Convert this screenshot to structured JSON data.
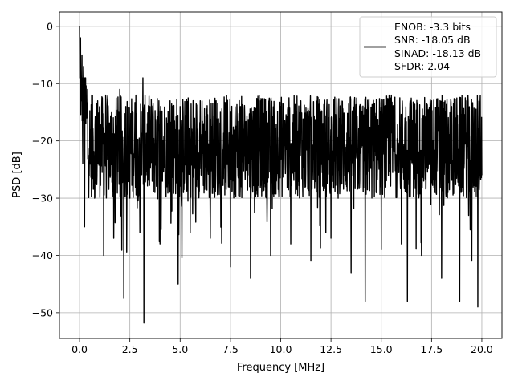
{
  "chart_data": {
    "type": "line",
    "title": "",
    "xlabel": "Frequency [MHz]",
    "ylabel": "PSD [dB]",
    "xlim": [
      -1.0,
      21.0
    ],
    "ylim": [
      -54.5,
      2.5
    ],
    "xticks": [
      0.0,
      2.5,
      5.0,
      7.5,
      10.0,
      12.5,
      15.0,
      17.5,
      20.0
    ],
    "xtick_labels": [
      "0.0",
      "2.5",
      "5.0",
      "7.5",
      "10.0",
      "12.5",
      "15.0",
      "17.5",
      "20.0"
    ],
    "yticks": [
      0,
      -10,
      -20,
      -30,
      -40,
      -50
    ],
    "ytick_labels": [
      "0",
      "−10",
      "−20",
      "−30",
      "−40",
      "−50"
    ],
    "grid": true,
    "legend": {
      "placement": "top-right",
      "entries": [
        "ENOB: -3.3 bits",
        "SNR: -18.05 dB",
        "SINAD: -18.13 dB",
        "SFDR: 2.04"
      ]
    },
    "series": [
      {
        "color": "#000000",
        "x": [
          0.0,
          0.02,
          0.05,
          0.08,
          0.12,
          0.16,
          0.2,
          0.25,
          0.3,
          0.35,
          0.4,
          0.5,
          0.6,
          0.75,
          0.9,
          1.0,
          1.2,
          1.3,
          1.5,
          1.7,
          2.0,
          2.2,
          2.3,
          2.5,
          2.8,
          3.0,
          3.15,
          3.2,
          3.5,
          4.0,
          4.5,
          4.9,
          5.0,
          5.5,
          6.0,
          6.5,
          7.0,
          7.5,
          8.0,
          8.5,
          9.0,
          9.5,
          10.0,
          10.5,
          11.0,
          11.5,
          12.0,
          12.5,
          13.0,
          13.5,
          14.0,
          14.2,
          14.5,
          15.0,
          15.5,
          16.0,
          16.3,
          16.5,
          17.0,
          17.5,
          18.0,
          18.5,
          18.9,
          19.2,
          19.5,
          19.8,
          20.0
        ],
        "y": [
          0.0,
          -8.0,
          -2.0,
          -13.0,
          -5.0,
          -24.0,
          -7.0,
          -35.0,
          -9.0,
          -16.0,
          -11.0,
          -23.0,
          -12.0,
          -30.0,
          -13.0,
          -18.0,
          -40.0,
          -12.0,
          -26.0,
          -37.0,
          -11.0,
          -47.5,
          -14.0,
          -30.0,
          -12.0,
          -36.0,
          -9.0,
          -51.8,
          -14.0,
          -38.0,
          -13.0,
          -45.0,
          -14.0,
          -36.0,
          -13.0,
          -37.0,
          -15.0,
          -42.0,
          -14.0,
          -44.0,
          -13.0,
          -40.0,
          -14.0,
          -38.0,
          -13.0,
          -41.0,
          -15.0,
          -37.0,
          -13.0,
          -43.0,
          -14.0,
          -48.0,
          -15.0,
          -39.0,
          -12.0,
          -38.0,
          -48.0,
          -14.0,
          -40.0,
          -13.0,
          -44.0,
          -14.0,
          -48.0,
          -13.0,
          -41.0,
          -49.0,
          -26.0
        ]
      }
    ]
  }
}
